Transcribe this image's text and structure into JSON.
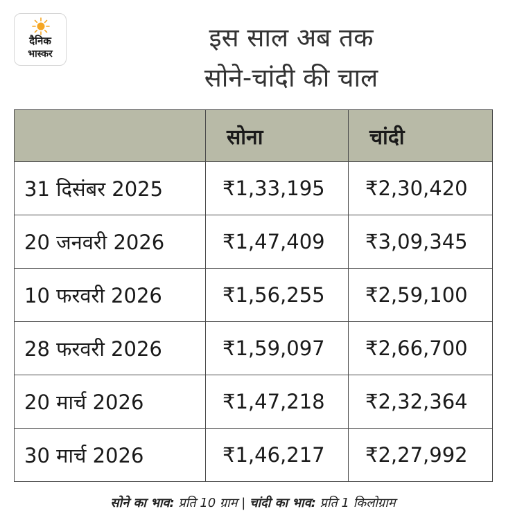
{
  "logo": {
    "line1": "दैनिक",
    "line2": "भास्कर",
    "sun_color": "#f5a623"
  },
  "title": {
    "line1": "इस साल अब तक",
    "line2": "सोने-चांदी की चाल"
  },
  "table": {
    "headers": [
      "",
      "सोना",
      "चांदी"
    ],
    "header_bg": "#b8baa7",
    "rows": [
      [
        "31 दिसंबर 2025",
        "₹1,33,195",
        "₹2,30,420"
      ],
      [
        "20 जनवरी 2026",
        "₹1,47,409",
        "₹3,09,345"
      ],
      [
        "10 फरवरी 2026",
        "₹1,56,255",
        "₹2,59,100"
      ],
      [
        "28 फरवरी 2026",
        "₹1,59,097",
        "₹2,66,700"
      ],
      [
        "20 मार्च 2026",
        "₹1,47,218",
        "₹2,32,364"
      ],
      [
        "30 मार्च 2026",
        "₹1,46,217",
        "₹2,27,992"
      ]
    ]
  },
  "footer": {
    "gold_label": "सोने का भाव:",
    "gold_value": " प्रति 10 ग्राम | ",
    "silver_label": "चांदी का भाव:",
    "silver_value": " प्रति 1 किलोग्राम"
  }
}
